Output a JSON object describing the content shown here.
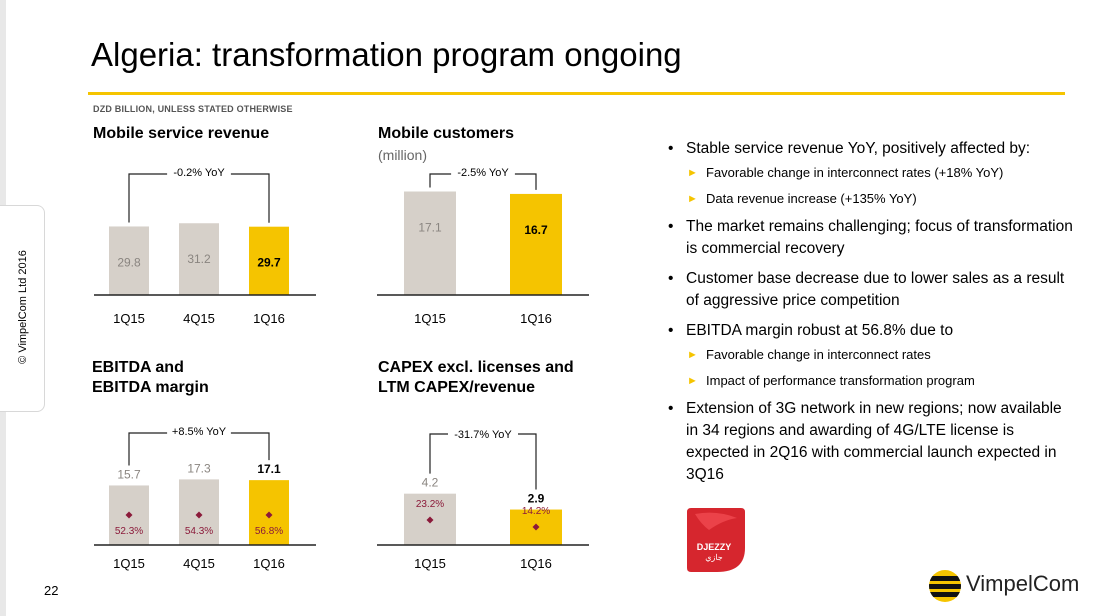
{
  "copyright": "© VimpelCom Ltd 2016",
  "title": "Algeria: transformation program ongoing",
  "units_note": "DZD BILLION, UNLESS STATED OTHERWISE",
  "page_number": "22",
  "colors": {
    "accent": "#f5c400",
    "grey_bar": "#d6d0c9",
    "margin_marker": "#8b1a3a",
    "label_grey": "#8a8580"
  },
  "chart_data": [
    {
      "type": "bar",
      "title": "Mobile service revenue",
      "categories": [
        "1Q15",
        "4Q15",
        "1Q16"
      ],
      "values": [
        29.8,
        31.2,
        29.7
      ],
      "value_labels": [
        "29.8",
        "31.2",
        "29.7"
      ],
      "highlight_index": 2,
      "annotation": "-0.2% YoY",
      "ylim": [
        0,
        50
      ]
    },
    {
      "type": "bar",
      "title": "Mobile customers",
      "subtitle": "(million)",
      "categories": [
        "1Q15",
        "1Q16"
      ],
      "values": [
        17.1,
        16.7
      ],
      "value_labels": [
        "17.1",
        "16.7"
      ],
      "highlight_index": 1,
      "annotation": "-2.5% YoY",
      "ylim": [
        0,
        19
      ]
    },
    {
      "type": "bar",
      "title": "EBITDA and",
      "title_line2": "EBITDA margin",
      "categories": [
        "1Q15",
        "4Q15",
        "1Q16"
      ],
      "values": [
        15.7,
        17.3,
        17.1
      ],
      "value_labels": [
        "15.7",
        "17.3",
        "17.1"
      ],
      "margin_values": [
        52.3,
        54.3,
        56.8
      ],
      "margin_labels": [
        "52.3%",
        "54.3%",
        "56.8%"
      ],
      "highlight_index": 2,
      "annotation": "+8.5% YoY",
      "ylim": [
        0,
        29
      ]
    },
    {
      "type": "bar",
      "title": "CAPEX excl. licenses and",
      "title_line2": "LTM CAPEX/revenue",
      "categories": [
        "1Q15",
        "1Q16"
      ],
      "values": [
        4.2,
        2.9
      ],
      "value_labels": [
        "4.2",
        "2.9"
      ],
      "ratio_values": [
        23.2,
        14.2
      ],
      "ratio_labels": [
        "23.2%",
        "14.2%"
      ],
      "highlight_index": 1,
      "annotation": "-31.7% YoY",
      "ylim": [
        0,
        9
      ]
    }
  ],
  "bullets": [
    {
      "text": "Stable service revenue YoY, positively affected by:",
      "sub": [
        "Favorable change in interconnect rates (+18% YoY)",
        "Data revenue increase (+135% YoY)"
      ]
    },
    {
      "text": "The market remains challenging; focus of transformation is commercial recovery",
      "sub": []
    },
    {
      "text": "Customer base decrease due to lower sales as a result of aggressive price competition",
      "sub": []
    },
    {
      "text": "EBITDA margin robust at 56.8% due to",
      "sub": [
        "Favorable change in interconnect rates",
        "Impact of performance transformation program"
      ]
    },
    {
      "text": "Extension of 3G network in new regions; now available in 34 regions and awarding of 4G/LTE license is expected in 2Q16 with commercial launch expected in 3Q16",
      "sub": []
    }
  ],
  "djezzy_logo": {
    "latin": "DJEZZY",
    "arabic": "جازي"
  },
  "vimpelcom_logo": {
    "text": "VimpelCom"
  }
}
